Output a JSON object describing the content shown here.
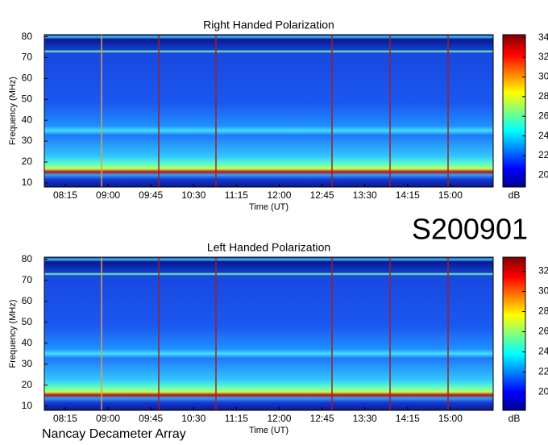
{
  "chart_data": [
    {
      "type": "heatmap",
      "title": "Right Handed Polarization",
      "xlabel": "Time (UT)",
      "ylabel": "Frequency (MHz)",
      "xlim": [
        "07:53",
        "15:45"
      ],
      "xticks": [
        "08:15",
        "09:00",
        "09:45",
        "10:30",
        "11:15",
        "12:00",
        "12:45",
        "13:30",
        "14:15",
        "15:00"
      ],
      "ylim": [
        8,
        81
      ],
      "yticks": [
        10,
        20,
        30,
        40,
        50,
        60,
        70,
        80
      ],
      "colorbar_label": "dB",
      "clim": [
        18.8,
        34.3
      ],
      "cticks": [
        20,
        22,
        24,
        26,
        28,
        30,
        32,
        34
      ]
    },
    {
      "type": "heatmap",
      "title": "Left Handed Polarization",
      "xlabel": "Time (UT)",
      "ylabel": "Frequency (MHz)",
      "xlim": [
        "07:53",
        "15:45"
      ],
      "xticks": [
        "08:15",
        "09:00",
        "09:45",
        "10:30",
        "11:15",
        "12:00",
        "12:45",
        "13:30",
        "14:15",
        "15:00"
      ],
      "ylim": [
        8,
        81
      ],
      "yticks": [
        10,
        20,
        30,
        40,
        50,
        60,
        70,
        80
      ],
      "colorbar_label": "dB",
      "clim": [
        18.2,
        33.4
      ],
      "cticks": [
        20,
        22,
        24,
        26,
        28,
        30,
        32
      ]
    }
  ],
  "station": "S200901",
  "instrument": "Nancay Decameter Array"
}
